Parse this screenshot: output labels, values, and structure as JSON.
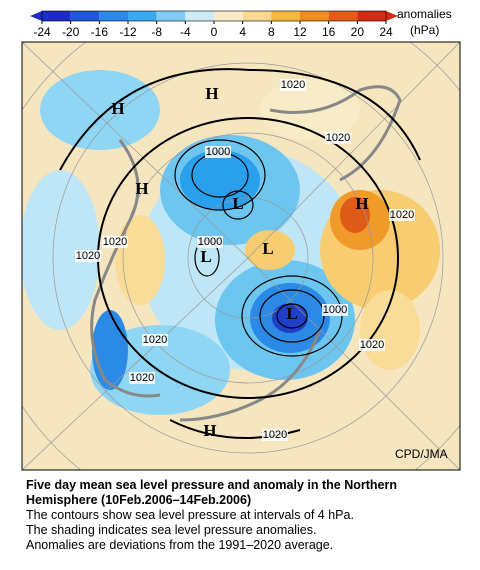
{
  "colorbar": {
    "ticks": [
      -24,
      -20,
      -16,
      -12,
      -8,
      -4,
      0,
      4,
      8,
      12,
      16,
      20,
      24
    ],
    "title": "anomalies",
    "unit": "(hPa)"
  },
  "map": {
    "contour_labels": [
      "1020",
      "1020",
      "1000",
      "1020",
      "1020",
      "1000",
      "1020",
      "1000",
      "1020",
      "1020",
      "1020",
      "1020"
    ],
    "highs": [
      "H",
      "H",
      "H",
      "H",
      "H"
    ],
    "lows": [
      "L",
      "L",
      "L",
      "L"
    ],
    "credit": "CPD/JMA"
  },
  "caption": {
    "title_lines": [
      "Five day mean sea level pressure and anomaly in the Northern",
      "Hemisphere (10Feb.2006–14Feb.2006)"
    ],
    "lines": [
      "The contours show sea level pressure at intervals of 4 hPa.",
      "The shading indicates sea level pressure anomalies.",
      "Anomalies are deviations from the 1991–2020 average."
    ]
  }
}
